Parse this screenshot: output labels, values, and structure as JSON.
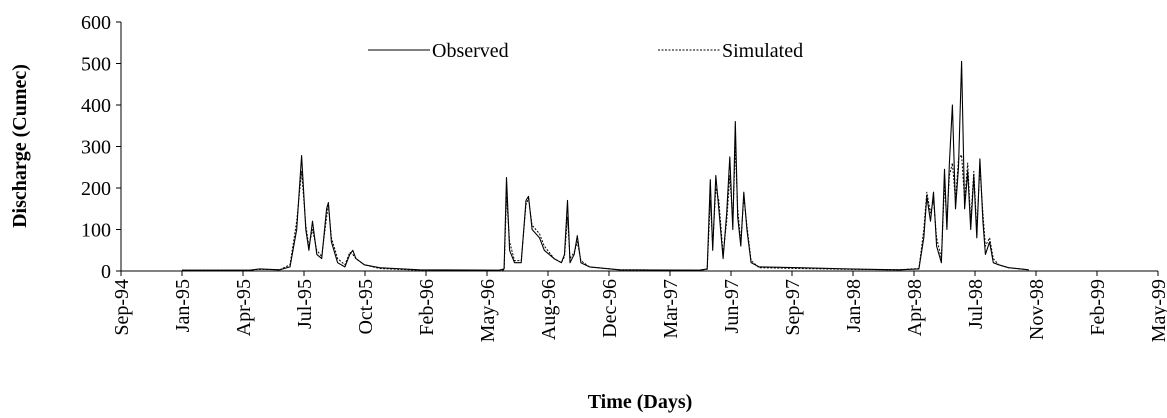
{
  "chart_data": {
    "type": "line",
    "x_label": "Time (Days)",
    "y_label": "Discharge (Cumec)",
    "x": [
      100,
      211,
      227,
      260,
      277,
      288,
      296,
      303,
      308,
      314,
      321,
      329,
      337,
      340,
      345,
      355,
      367,
      375,
      380,
      385,
      399,
      424,
      489,
      620,
      628,
      632,
      637,
      645,
      656,
      664,
      668,
      674,
      686,
      694,
      702,
      710,
      722,
      727,
      732,
      736,
      743,
      748,
      754,
      768,
      817,
      948,
      961,
      966,
      970,
      975,
      980,
      987,
      993,
      998,
      1003,
      1007,
      1011,
      1016,
      1021,
      1026,
      1033,
      1046,
      1111,
      1193,
      1275,
      1308,
      1316,
      1321,
      1327,
      1332,
      1337,
      1345,
      1350,
      1354,
      1358,
      1363,
      1368,
      1373,
      1378,
      1383,
      1388,
      1393,
      1398,
      1403,
      1408,
      1413,
      1417,
      1424,
      1430,
      1439,
      1455,
      1488
    ],
    "series": [
      {
        "name": "Observed",
        "color": "#000000",
        "dash": "solid",
        "values": [
          2,
          2,
          5,
          3,
          10,
          100,
          278,
          100,
          50,
          120,
          40,
          30,
          150,
          165,
          70,
          20,
          10,
          40,
          50,
          30,
          15,
          8,
          3,
          2,
          5,
          225,
          50,
          20,
          20,
          170,
          180,
          100,
          80,
          50,
          40,
          30,
          20,
          40,
          170,
          20,
          40,
          85,
          20,
          10,
          3,
          2,
          5,
          220,
          50,
          230,
          150,
          30,
          140,
          275,
          100,
          360,
          130,
          60,
          190,
          100,
          20,
          10,
          8,
          5,
          3,
          5,
          80,
          180,
          120,
          190,
          60,
          20,
          245,
          100,
          260,
          400,
          150,
          250,
          505,
          150,
          240,
          100,
          230,
          80,
          270,
          120,
          40,
          70,
          20,
          15,
          8,
          3
        ]
      },
      {
        "name": "Simulated",
        "color": "#000000",
        "dash": "dotted",
        "values": [
          2,
          2,
          4,
          3,
          15,
          120,
          240,
          110,
          60,
          100,
          50,
          35,
          130,
          160,
          80,
          30,
          15,
          45,
          40,
          30,
          15,
          6,
          2,
          1,
          3,
          180,
          70,
          25,
          25,
          160,
          175,
          110,
          90,
          60,
          45,
          30,
          20,
          35,
          130,
          30,
          45,
          70,
          25,
          10,
          3,
          2,
          4,
          170,
          60,
          200,
          170,
          40,
          120,
          230,
          120,
          300,
          150,
          70,
          180,
          110,
          25,
          8,
          6,
          4,
          3,
          6,
          100,
          190,
          140,
          170,
          80,
          30,
          210,
          120,
          230,
          260,
          170,
          270,
          280,
          170,
          260,
          120,
          240,
          100,
          250,
          140,
          60,
          80,
          30,
          15,
          8,
          3
        ]
      }
    ],
    "xlim": [
      0,
      1700
    ],
    "xticks": [
      {
        "value": 0,
        "label": "Sep-94"
      },
      {
        "value": 100,
        "label": "Jan-95"
      },
      {
        "value": 200,
        "label": "Apr-95"
      },
      {
        "value": 300,
        "label": "Jul-95"
      },
      {
        "value": 400,
        "label": "Oct-95"
      },
      {
        "value": 500,
        "label": "Feb-96"
      },
      {
        "value": 600,
        "label": "May-96"
      },
      {
        "value": 700,
        "label": "Aug-96"
      },
      {
        "value": 800,
        "label": "Dec-96"
      },
      {
        "value": 900,
        "label": "Mar-97"
      },
      {
        "value": 1000,
        "label": "Jun-97"
      },
      {
        "value": 1100,
        "label": "Sep-97"
      },
      {
        "value": 1200,
        "label": "Jan-98"
      },
      {
        "value": 1300,
        "label": "Apr-98"
      },
      {
        "value": 1400,
        "label": "Jul-98"
      },
      {
        "value": 1500,
        "label": "Nov-98"
      },
      {
        "value": 1600,
        "label": "Feb-99"
      },
      {
        "value": 1700,
        "label": "May-99"
      }
    ],
    "ylim": [
      0,
      600
    ],
    "yticks": [
      0,
      100,
      200,
      300,
      400,
      500,
      600
    ],
    "grid": false,
    "legend": "top"
  }
}
